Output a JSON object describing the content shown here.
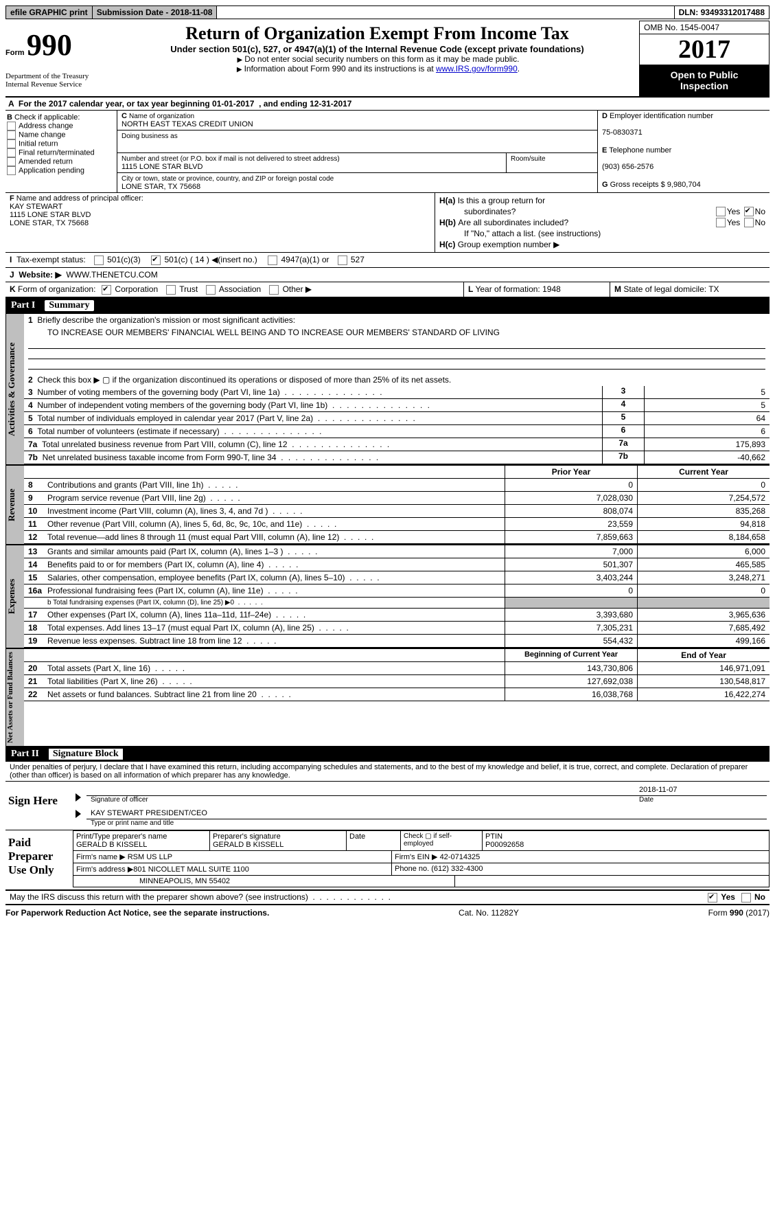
{
  "topbar": {
    "efile": "efile GRAPHIC print",
    "subdate_label": "Submission Date - ",
    "subdate": "2018-11-08",
    "dln_label": "DLN: ",
    "dln": "93493312017488"
  },
  "hdr": {
    "form_word": "Form",
    "form_no": "990",
    "dept1": "Department of the Treasury",
    "dept2": "Internal Revenue Service",
    "title": "Return of Organization Exempt From Income Tax",
    "sub1": "Under section 501(c), 527, or 4947(a)(1) of the Internal Revenue Code (except private foundations)",
    "sub2": "Do not enter social security numbers on this form as it may be made public.",
    "sub3a": "Information about Form 990 and its instructions is at ",
    "sub3_link": "www.IRS.gov/form990",
    "omb": "OMB No. 1545-0047",
    "year": "2017",
    "open1": "Open to Public",
    "open2": "Inspection"
  },
  "A": {
    "text_a": "For the 2017 calendar year, or tax year beginning ",
    "beg": "01-01-2017",
    "text_b": ", and ending ",
    "end": "12-31-2017"
  },
  "B": {
    "label": "Check if applicable:",
    "opts": [
      "Address change",
      "Name change",
      "Initial return",
      "Final return/terminated",
      "Amended return",
      "Application pending"
    ]
  },
  "C": {
    "name_label": "Name of organization",
    "name": "NORTH EAST TEXAS CREDIT UNION",
    "dba_label": "Doing business as",
    "dba": "",
    "street_label": "Number and street (or P.O. box if mail is not delivered to street address)",
    "street": "1115 LONE STAR BLVD",
    "room_label": "Room/suite",
    "city_label": "City or town, state or province, country, and ZIP or foreign postal code",
    "city": "LONE STAR, TX  75668"
  },
  "D": {
    "label": "Employer identification number",
    "val": "75-0830371"
  },
  "E": {
    "label": "Telephone number",
    "val": "(903) 656-2576"
  },
  "G": {
    "label": "Gross receipts $ ",
    "val": "9,980,704"
  },
  "F": {
    "label": "Name and address of principal officer:",
    "l1": "KAY STEWART",
    "l2": "1115 LONE STAR BLVD",
    "l3": "LONE STAR, TX  75668"
  },
  "H": {
    "a": "Is this a group return for",
    "a2": "subordinates?",
    "b": "Are all subordinates included?",
    "b2": "If \"No,\" attach a list. (see instructions)",
    "c": "Group exemption number",
    "yes": "Yes",
    "no": "No"
  },
  "I": {
    "label": "Tax-exempt status:",
    "o1": "501(c)(3)",
    "o2": "501(c) (",
    "o2n": "14",
    "o2t": ") ◀(insert no.)",
    "o3": "4947(a)(1) or",
    "o4": "527"
  },
  "J": {
    "label": "Website:",
    "val": "WWW.THENETCU.COM"
  },
  "K": {
    "label": "Form of organization:",
    "o": [
      "Corporation",
      "Trust",
      "Association",
      "Other"
    ]
  },
  "L": {
    "label": "Year of formation: ",
    "val": "1948"
  },
  "M": {
    "label": "State of legal domicile: ",
    "val": "TX"
  },
  "partI": {
    "n": "Part I",
    "t": "Summary"
  },
  "sec_ag": {
    "vlabel": "Activities & Governance",
    "l1": "Briefly describe the organization's mission or most significant activities:",
    "l1_text": "TO INCREASE OUR MEMBERS' FINANCIAL WELL BEING AND TO INCREASE OUR MEMBERS' STANDARD OF LIVING",
    "l2": "Check this box ▶ ▢  if the organization discontinued its operations or disposed of more than 25% of its net assets.",
    "rows": [
      {
        "n": "3",
        "d": "Number of voting members of the governing body (Part VI, line 1a)",
        "v": "5"
      },
      {
        "n": "4",
        "d": "Number of independent voting members of the governing body (Part VI, line 1b)",
        "v": "5"
      },
      {
        "n": "5",
        "d": "Total number of individuals employed in calendar year 2017 (Part V, line 2a)",
        "v": "64"
      },
      {
        "n": "6",
        "d": "Total number of volunteers (estimate if necessary)",
        "v": "6"
      },
      {
        "n": "7a",
        "d": "Total unrelated business revenue from Part VIII, column (C), line 12",
        "v": "175,893"
      },
      {
        "n": "7b",
        "pre": "b",
        "d": "Net unrelated business taxable income from Form 990-T, line 34",
        "v": "-40,662"
      }
    ]
  },
  "sec_rev": {
    "vlabel": "Revenue",
    "h1": "Prior Year",
    "h2": "Current Year",
    "rows": [
      {
        "n": "8",
        "d": "Contributions and grants (Part VIII, line 1h)",
        "p": "0",
        "c": "0"
      },
      {
        "n": "9",
        "d": "Program service revenue (Part VIII, line 2g)",
        "p": "7,028,030",
        "c": "7,254,572"
      },
      {
        "n": "10",
        "d": "Investment income (Part VIII, column (A), lines 3, 4, and 7d )",
        "p": "808,074",
        "c": "835,268"
      },
      {
        "n": "11",
        "d": "Other revenue (Part VIII, column (A), lines 5, 6d, 8c, 9c, 10c, and 11e)",
        "p": "23,559",
        "c": "94,818"
      },
      {
        "n": "12",
        "d": "Total revenue—add lines 8 through 11 (must equal Part VIII, column (A), line 12)",
        "p": "7,859,663",
        "c": "8,184,658"
      }
    ]
  },
  "sec_exp": {
    "vlabel": "Expenses",
    "rows": [
      {
        "n": "13",
        "d": "Grants and similar amounts paid (Part IX, column (A), lines 1–3 )",
        "p": "7,000",
        "c": "6,000"
      },
      {
        "n": "14",
        "d": "Benefits paid to or for members (Part IX, column (A), line 4)",
        "p": "501,307",
        "c": "465,585"
      },
      {
        "n": "15",
        "d": "Salaries, other compensation, employee benefits (Part IX, column (A), lines 5–10)",
        "p": "3,403,244",
        "c": "3,248,271"
      },
      {
        "n": "16a",
        "d": "Professional fundraising fees (Part IX, column (A), line 11e)",
        "p": "0",
        "c": "0"
      },
      {
        "n": "",
        "d": "b  Total fundraising expenses (Part IX, column (D), line 25) ▶0",
        "p": "",
        "c": "",
        "shade": true,
        "small": true
      },
      {
        "n": "17",
        "d": "Other expenses (Part IX, column (A), lines 11a–11d, 11f–24e)",
        "p": "3,393,680",
        "c": "3,965,636"
      },
      {
        "n": "18",
        "d": "Total expenses. Add lines 13–17 (must equal Part IX, column (A), line 25)",
        "p": "7,305,231",
        "c": "7,685,492"
      },
      {
        "n": "19",
        "d": "Revenue less expenses. Subtract line 18 from line 12",
        "p": "554,432",
        "c": "499,166"
      }
    ]
  },
  "sec_na": {
    "vlabel": "Net Assets or Fund Balances",
    "h1": "Beginning of Current Year",
    "h2": "End of Year",
    "rows": [
      {
        "n": "20",
        "d": "Total assets (Part X, line 16)",
        "p": "143,730,806",
        "c": "146,971,091"
      },
      {
        "n": "21",
        "d": "Total liabilities (Part X, line 26)",
        "p": "127,692,038",
        "c": "130,548,817"
      },
      {
        "n": "22",
        "d": "Net assets or fund balances. Subtract line 21 from line 20",
        "p": "16,038,768",
        "c": "16,422,274"
      }
    ]
  },
  "partII": {
    "n": "Part II",
    "t": "Signature Block"
  },
  "perjury": "Under penalties of perjury, I declare that I have examined this return, including accompanying schedules and statements, and to the best of my knowledge and belief, it is true, correct, and complete. Declaration of preparer (other than officer) is based on all information of which preparer has any knowledge.",
  "sign": {
    "left": "Sign Here",
    "date": "2018-11-07",
    "sig_label": "Signature of officer",
    "date_label": "Date",
    "name": "KAY STEWART PRESIDENT/CEO",
    "name_label": "Type or print name and title"
  },
  "paid": {
    "left": "Paid Preparer Use Only",
    "r1": {
      "a": "Print/Type preparer's name",
      "av": "GERALD B KISSELL",
      "b": "Preparer's signature",
      "bv": "GERALD B KISSELL",
      "c": "Date",
      "d": "Check ▢ if self-employed",
      "e": "PTIN",
      "ev": "P00092658"
    },
    "r2": {
      "a": "Firm's name    ▶ ",
      "av": "RSM US LLP",
      "b": "Firm's EIN ▶ ",
      "bv": "42-0714325"
    },
    "r3": {
      "a": "Firm's address ▶",
      "av": "801 NICOLLET MALL SUITE 1100",
      "b": "Phone no. ",
      "bv": "(612) 332-4300"
    },
    "r4": {
      "a": "",
      "av": "MINNEAPOLIS, MN  55402"
    }
  },
  "discuss": {
    "t": "May the IRS discuss this return with the preparer shown above? (see instructions)",
    "yes": "Yes",
    "no": "No"
  },
  "footer": {
    "l": "For Paperwork Reduction Act Notice, see the separate instructions.",
    "c": "Cat. No. 11282Y",
    "r": "Form 990 (2017)"
  }
}
